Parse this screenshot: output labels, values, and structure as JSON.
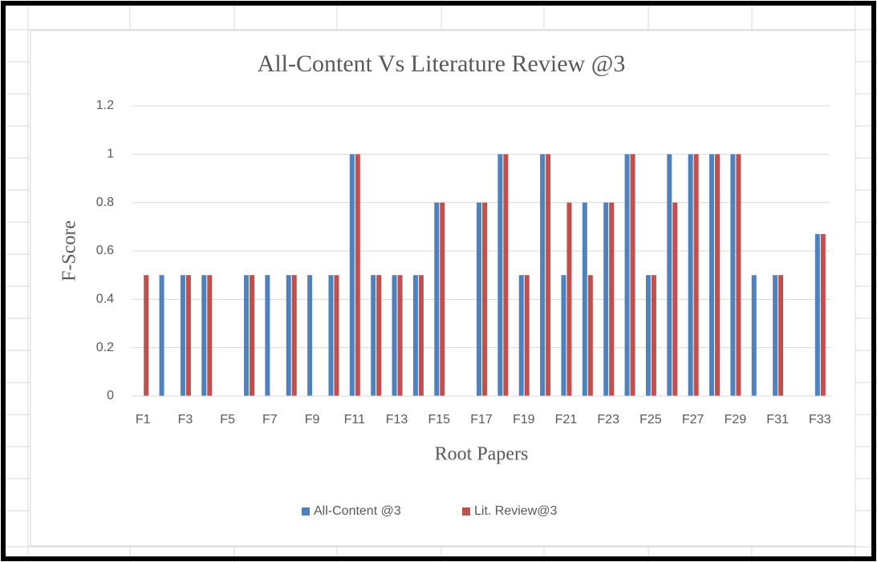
{
  "chart_data": {
    "type": "bar",
    "title": "All-Content Vs Literature Review @3",
    "x_label": "Root Papers",
    "y_label": "F-Score",
    "categories": [
      "F1",
      null,
      "F3",
      null,
      "F5",
      null,
      "F7",
      null,
      "F9",
      null,
      "F11",
      null,
      "F13",
      null,
      "F15",
      null,
      "F17",
      null,
      "F19",
      null,
      "F21",
      null,
      "F23",
      null,
      "F25",
      null,
      "F27",
      null,
      "F29",
      null,
      "F31",
      null,
      "F33"
    ],
    "series": [
      {
        "name": "All-Content @3",
        "color": "#4f81bd",
        "values": [
          0,
          0.5,
          0.5,
          0.5,
          0,
          0.5,
          0.5,
          0.5,
          0.5,
          0.5,
          1,
          0.5,
          0.5,
          0.5,
          0.8,
          0,
          0.8,
          1,
          0.5,
          1,
          0.5,
          0.8,
          0.8,
          1,
          0.5,
          1,
          1,
          1,
          1,
          0.5,
          0.5,
          0,
          0.67
        ]
      },
      {
        "name": "Lit. Review@3",
        "color": "#c0504d",
        "values": [
          0.5,
          0,
          0.5,
          0.5,
          0,
          0.5,
          0,
          0.5,
          0,
          0.5,
          1,
          0.5,
          0.5,
          0.5,
          0.8,
          0,
          0.8,
          1,
          0.5,
          1,
          0.8,
          0.5,
          0.8,
          1,
          0.5,
          0.8,
          1,
          1,
          1,
          0,
          0.5,
          0,
          0.67
        ]
      }
    ],
    "ylim": [
      0,
      1.2
    ],
    "yticks": [
      0,
      0.2,
      0.4,
      0.6,
      0.8,
      1,
      1.2
    ],
    "grid": true,
    "legend": "bottom"
  }
}
